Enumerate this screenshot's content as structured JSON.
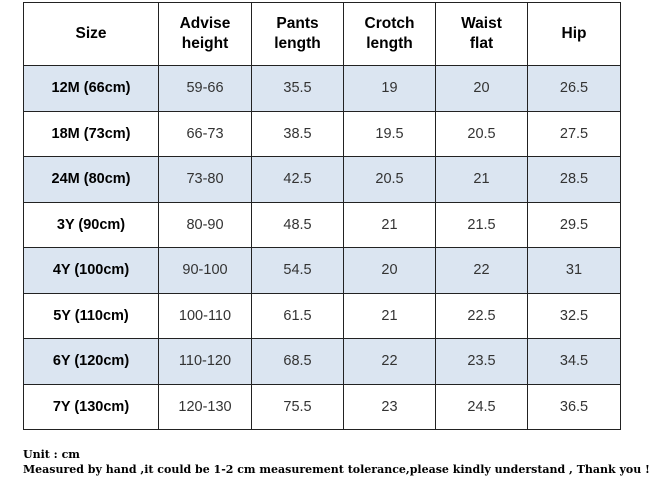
{
  "table": {
    "headers": [
      "Size",
      "Advise\nheight",
      "Pants\nlength",
      "Crotch\nlength",
      "Waist\nflat",
      "Hip"
    ],
    "rows": [
      [
        "12M (66cm)",
        "59-66",
        "35.5",
        "19",
        "20",
        "26.5"
      ],
      [
        "18M (73cm)",
        "66-73",
        "38.5",
        "19.5",
        "20.5",
        "27.5"
      ],
      [
        "24M (80cm)",
        "73-80",
        "42.5",
        "20.5",
        "21",
        "28.5"
      ],
      [
        "3Y (90cm)",
        "80-90",
        "48.5",
        "21",
        "21.5",
        "29.5"
      ],
      [
        "4Y (100cm)",
        "90-100",
        "54.5",
        "20",
        "22",
        "31"
      ],
      [
        "5Y (110cm)",
        "100-110",
        "61.5",
        "21",
        "22.5",
        "32.5"
      ],
      [
        "6Y (120cm)",
        "110-120",
        "68.5",
        "22",
        "23.5",
        "34.5"
      ],
      [
        "7Y (130cm)",
        "120-130",
        "75.5",
        "23",
        "24.5",
        "36.5"
      ]
    ],
    "shaded_row_color": "#dbe5f1"
  },
  "notes": {
    "unit": "Unit : cm",
    "tolerance": "Measured by hand ,it could be 1-2 cm measurement tolerance,please kindly understand , Thank you !"
  }
}
